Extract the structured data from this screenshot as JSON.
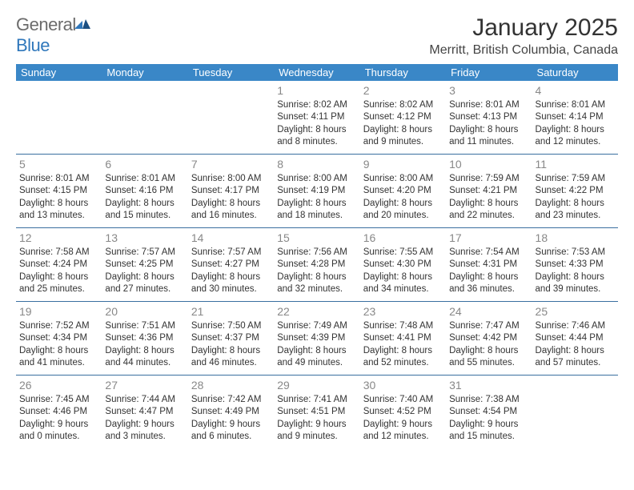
{
  "logo": {
    "word1": "General",
    "word2": "Blue"
  },
  "title": "January 2025",
  "location": "Merritt, British Columbia, Canada",
  "colors": {
    "header_bg": "#3a87c7",
    "header_fg": "#ffffff",
    "row_border": "#3a6fa0",
    "daynum": "#888888",
    "text": "#333333",
    "logo_gray": "#6b6b6b",
    "logo_blue": "#2f77bb"
  },
  "day_names": [
    "Sunday",
    "Monday",
    "Tuesday",
    "Wednesday",
    "Thursday",
    "Friday",
    "Saturday"
  ],
  "weeks": [
    [
      null,
      null,
      null,
      {
        "n": "1",
        "sunrise": "8:02 AM",
        "sunset": "4:11 PM",
        "dl1": "Daylight: 8 hours",
        "dl2": "and 8 minutes."
      },
      {
        "n": "2",
        "sunrise": "8:02 AM",
        "sunset": "4:12 PM",
        "dl1": "Daylight: 8 hours",
        "dl2": "and 9 minutes."
      },
      {
        "n": "3",
        "sunrise": "8:01 AM",
        "sunset": "4:13 PM",
        "dl1": "Daylight: 8 hours",
        "dl2": "and 11 minutes."
      },
      {
        "n": "4",
        "sunrise": "8:01 AM",
        "sunset": "4:14 PM",
        "dl1": "Daylight: 8 hours",
        "dl2": "and 12 minutes."
      }
    ],
    [
      {
        "n": "5",
        "sunrise": "8:01 AM",
        "sunset": "4:15 PM",
        "dl1": "Daylight: 8 hours",
        "dl2": "and 13 minutes."
      },
      {
        "n": "6",
        "sunrise": "8:01 AM",
        "sunset": "4:16 PM",
        "dl1": "Daylight: 8 hours",
        "dl2": "and 15 minutes."
      },
      {
        "n": "7",
        "sunrise": "8:00 AM",
        "sunset": "4:17 PM",
        "dl1": "Daylight: 8 hours",
        "dl2": "and 16 minutes."
      },
      {
        "n": "8",
        "sunrise": "8:00 AM",
        "sunset": "4:19 PM",
        "dl1": "Daylight: 8 hours",
        "dl2": "and 18 minutes."
      },
      {
        "n": "9",
        "sunrise": "8:00 AM",
        "sunset": "4:20 PM",
        "dl1": "Daylight: 8 hours",
        "dl2": "and 20 minutes."
      },
      {
        "n": "10",
        "sunrise": "7:59 AM",
        "sunset": "4:21 PM",
        "dl1": "Daylight: 8 hours",
        "dl2": "and 22 minutes."
      },
      {
        "n": "11",
        "sunrise": "7:59 AM",
        "sunset": "4:22 PM",
        "dl1": "Daylight: 8 hours",
        "dl2": "and 23 minutes."
      }
    ],
    [
      {
        "n": "12",
        "sunrise": "7:58 AM",
        "sunset": "4:24 PM",
        "dl1": "Daylight: 8 hours",
        "dl2": "and 25 minutes."
      },
      {
        "n": "13",
        "sunrise": "7:57 AM",
        "sunset": "4:25 PM",
        "dl1": "Daylight: 8 hours",
        "dl2": "and 27 minutes."
      },
      {
        "n": "14",
        "sunrise": "7:57 AM",
        "sunset": "4:27 PM",
        "dl1": "Daylight: 8 hours",
        "dl2": "and 30 minutes."
      },
      {
        "n": "15",
        "sunrise": "7:56 AM",
        "sunset": "4:28 PM",
        "dl1": "Daylight: 8 hours",
        "dl2": "and 32 minutes."
      },
      {
        "n": "16",
        "sunrise": "7:55 AM",
        "sunset": "4:30 PM",
        "dl1": "Daylight: 8 hours",
        "dl2": "and 34 minutes."
      },
      {
        "n": "17",
        "sunrise": "7:54 AM",
        "sunset": "4:31 PM",
        "dl1": "Daylight: 8 hours",
        "dl2": "and 36 minutes."
      },
      {
        "n": "18",
        "sunrise": "7:53 AM",
        "sunset": "4:33 PM",
        "dl1": "Daylight: 8 hours",
        "dl2": "and 39 minutes."
      }
    ],
    [
      {
        "n": "19",
        "sunrise": "7:52 AM",
        "sunset": "4:34 PM",
        "dl1": "Daylight: 8 hours",
        "dl2": "and 41 minutes."
      },
      {
        "n": "20",
        "sunrise": "7:51 AM",
        "sunset": "4:36 PM",
        "dl1": "Daylight: 8 hours",
        "dl2": "and 44 minutes."
      },
      {
        "n": "21",
        "sunrise": "7:50 AM",
        "sunset": "4:37 PM",
        "dl1": "Daylight: 8 hours",
        "dl2": "and 46 minutes."
      },
      {
        "n": "22",
        "sunrise": "7:49 AM",
        "sunset": "4:39 PM",
        "dl1": "Daylight: 8 hours",
        "dl2": "and 49 minutes."
      },
      {
        "n": "23",
        "sunrise": "7:48 AM",
        "sunset": "4:41 PM",
        "dl1": "Daylight: 8 hours",
        "dl2": "and 52 minutes."
      },
      {
        "n": "24",
        "sunrise": "7:47 AM",
        "sunset": "4:42 PM",
        "dl1": "Daylight: 8 hours",
        "dl2": "and 55 minutes."
      },
      {
        "n": "25",
        "sunrise": "7:46 AM",
        "sunset": "4:44 PM",
        "dl1": "Daylight: 8 hours",
        "dl2": "and 57 minutes."
      }
    ],
    [
      {
        "n": "26",
        "sunrise": "7:45 AM",
        "sunset": "4:46 PM",
        "dl1": "Daylight: 9 hours",
        "dl2": "and 0 minutes."
      },
      {
        "n": "27",
        "sunrise": "7:44 AM",
        "sunset": "4:47 PM",
        "dl1": "Daylight: 9 hours",
        "dl2": "and 3 minutes."
      },
      {
        "n": "28",
        "sunrise": "7:42 AM",
        "sunset": "4:49 PM",
        "dl1": "Daylight: 9 hours",
        "dl2": "and 6 minutes."
      },
      {
        "n": "29",
        "sunrise": "7:41 AM",
        "sunset": "4:51 PM",
        "dl1": "Daylight: 9 hours",
        "dl2": "and 9 minutes."
      },
      {
        "n": "30",
        "sunrise": "7:40 AM",
        "sunset": "4:52 PM",
        "dl1": "Daylight: 9 hours",
        "dl2": "and 12 minutes."
      },
      {
        "n": "31",
        "sunrise": "7:38 AM",
        "sunset": "4:54 PM",
        "dl1": "Daylight: 9 hours",
        "dl2": "and 15 minutes."
      },
      null
    ]
  ],
  "labels": {
    "sunrise_prefix": "Sunrise: ",
    "sunset_prefix": "Sunset: "
  }
}
